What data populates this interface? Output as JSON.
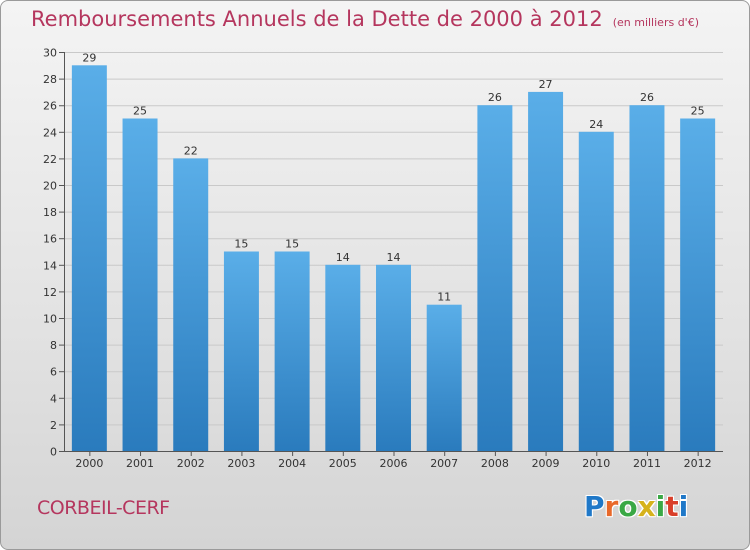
{
  "title": "Remboursements Annuels de la Dette de 2000 à 2012",
  "unit": "(en milliers d'€)",
  "commune": "CORBEIL-CERF",
  "brand": {
    "text": "Proxiti",
    "colors": [
      "#1f78c8",
      "#e8692a",
      "#3aa845",
      "#d6b21c",
      "#3aa845",
      "#d93f2a",
      "#1f78c8"
    ]
  },
  "colors": {
    "title": "#b5365e",
    "bar_top": "#5aaee8",
    "bar_bottom": "#2a7bbd",
    "grid": "#c9c9c9",
    "axis": "#555555"
  },
  "chart_data": {
    "type": "bar",
    "categories": [
      "2000",
      "2001",
      "2002",
      "2003",
      "2004",
      "2005",
      "2006",
      "2007",
      "2008",
      "2009",
      "2010",
      "2011",
      "2012"
    ],
    "values": [
      29,
      25,
      22,
      15,
      15,
      14,
      14,
      11,
      26,
      27,
      24,
      26,
      25
    ],
    "ylim": [
      0,
      30
    ],
    "yticks": [
      0,
      2,
      4,
      6,
      8,
      10,
      12,
      14,
      16,
      18,
      20,
      22,
      24,
      26,
      28,
      30
    ],
    "grid": true,
    "data_labels": true
  }
}
